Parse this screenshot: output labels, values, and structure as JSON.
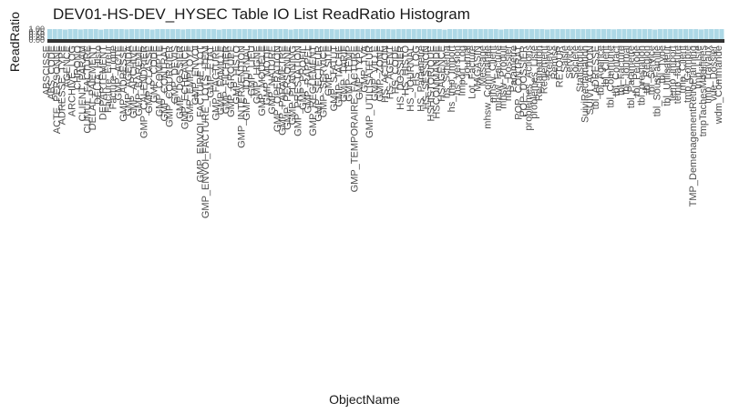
{
  "chart_data": {
    "type": "bar",
    "title": "DEV01-HS-DEV_HYSEC Table IO List ReadRatio Histogram",
    "xlabel": "ObjectName",
    "ylabel": "ReadRatio",
    "ylim": [
      0,
      1
    ],
    "y_ticks": [
      "0.00",
      "0.25",
      "0.50",
      "0.75",
      "1.00"
    ],
    "bar_color": "#add8e6",
    "label_color": "#4d4d4d",
    "categories": [
      "ABSCISSE",
      "ABS_CODE",
      "ACTE_PERSONNE",
      "ADRESSE_TYPE",
      "AGENCE",
      "ARCHIVE_LOG",
      "CHRONO",
      "CLIENT_PARAM",
      "CUMUL_FACTURE",
      "DELAI_PAIEMENT",
      "DELTA_Histo",
      "DEPARTEMENT",
      "Facture_Erreur",
      "Facture_Ligne",
      "GMP_ACTE",
      "GMP_ADRESSE",
      "GMP_AGENDA",
      "GMP_ARCHIVE",
      "GMP_BAREME",
      "GMP_CALENDRIER",
      "GMP_CLASSE",
      "GMP_CODE",
      "GMP_COMPTE",
      "GMP_CONTRAT",
      "GMP_COURRIER",
      "GMP_DEVIS",
      "GMP_DOSSIER",
      "GMP_ECHEANCE",
      "GMP_EMPLOYE",
      "GMP_ENVOI",
      "GMP_ENVOI_FACTURE_LOT",
      "GMP_ENVOI_FACTURE_LOTS_ITEM",
      "GMP_ETAT",
      "GMP_FACTURE",
      "GMP_FAMILLE",
      "GMP_FICHIER",
      "GMP_GROUPE",
      "GMP_HISTO",
      "GMP_INTERVENTION",
      "GMP_JOURNAL",
      "GMP_LIEU",
      "GMP_LIGNE",
      "GMP_MODELE",
      "GMP_MOTIF",
      "GMP_NATURE",
      "GMP_OPERATION",
      "GMP_PARAMETRE",
      "GMP_PERSONNE",
      "GMP_PLANNING",
      "GMP_PRESTATION",
      "GMP_PROFIL",
      "GMP_RAPPEL",
      "GMP_REGLEMENT",
      "GMP_SECTEUR",
      "GMP_SERVICE",
      "GMP_SITE",
      "GMP_STATUT",
      "GMP_TACHE",
      "GMP_TARIF",
      "GMP_TEMP",
      "GMP_TEMPORAIRE_FACTURE",
      "GMP_TYPE",
      "GMP_TVA",
      "GMP_UTILISATEUR",
      "GMP_VILLE",
      "GMP_ZONE",
      "HS_ACTION",
      "HS_AGENT",
      "HS_CODE",
      "HS_DOSSIER",
      "HS_HISTO",
      "HS_JOURNAL",
      "HS_LOG",
      "HS_Parametre",
      "HS_SESSION",
      "HSHISTORIQUE",
      "HSCOMMANDE",
      "HSAGENCE",
      "hs_Schema",
      "hs_tmp_Import",
      "hs_Version",
      "Import_Log",
      "Journal",
      "Lot_Facture",
      "MAGASIN",
      "Message",
      "mhsw_Commande",
      "mhsw_Client",
      "mhsw_Facture",
      "mhsw_Produit",
      "nbs_Dossier",
      "Parametre",
      "POP_CONTRAT",
      "POP_DOSSIER",
      "problemes_Actions",
      "problemes_Liste",
      "Reclamation",
      "Reglement",
      "Releve",
      "Remise",
      "RETOUR",
      "Saisie",
      "Service",
      "Societe",
      "Statistique",
      "SuiviReclamation",
      "SUIVI_ACTION",
      "tbl_ADRESSE",
      "tbl_Agence",
      "tbl_Client",
      "tbl_Commune",
      "tbl_Contact",
      "tbl_Facture",
      "tbl_Journal",
      "tbl_Parametre",
      "tbl_Periode",
      "tbl_prestation",
      "tbl_Region",
      "tbl_Service",
      "tbl_SousFamille",
      "tbl_Type",
      "tbl_Utilisateur",
      "temp_import",
      "temp_facture",
      "tmp_Client",
      "tmp_Compte",
      "TMP_DemenagementRetroPlanning",
      "tmp_Liste",
      "tmpTachesModifiees",
      "tmp_Travaux",
      "vue_Dossier",
      "wdm_Commande"
    ],
    "values": [
      1.0,
      1.0,
      1.0,
      0.96,
      1.0,
      1.0,
      0.97,
      1.0,
      1.0,
      1.0,
      0.95,
      1.0,
      1.0,
      1.0,
      1.0,
      0.98,
      1.0,
      1.0,
      1.0,
      1.0,
      0.96,
      1.0,
      1.0,
      1.0,
      1.0,
      1.0,
      0.97,
      1.0,
      1.0,
      1.0,
      1.0,
      1.0,
      1.0,
      0.95,
      1.0,
      1.0,
      1.0,
      1.0,
      1.0,
      1.0,
      0.98,
      1.0,
      1.0,
      1.0,
      1.0,
      1.0,
      1.0,
      0.96,
      1.0,
      1.0,
      1.0,
      1.0,
      1.0,
      1.0,
      1.0,
      1.0,
      0.97,
      1.0,
      1.0,
      1.0,
      1.0,
      1.0,
      1.0,
      1.0,
      1.0,
      1.0,
      1.0,
      0.98,
      1.0,
      1.0,
      1.0,
      1.0,
      1.0,
      1.0,
      1.0,
      1.0,
      1.0,
      0.95,
      1.0,
      1.0,
      1.0,
      1.0,
      1.0,
      1.0,
      1.0,
      1.0,
      1.0,
      1.0,
      0.96,
      1.0,
      1.0,
      1.0,
      1.0,
      1.0,
      1.0,
      1.0,
      1.0,
      0.97,
      1.0,
      1.0,
      1.0,
      1.0,
      1.0,
      1.0,
      1.0,
      1.0,
      1.0,
      1.0,
      1.0,
      1.0,
      0.98,
      1.0,
      1.0,
      1.0,
      1.0,
      1.0,
      1.0,
      1.0,
      0.96,
      1.0,
      1.0,
      1.0,
      1.0,
      1.0,
      1.0,
      1.0,
      1.0,
      0.97,
      1.0,
      1.0,
      1.0,
      1.0
    ]
  }
}
